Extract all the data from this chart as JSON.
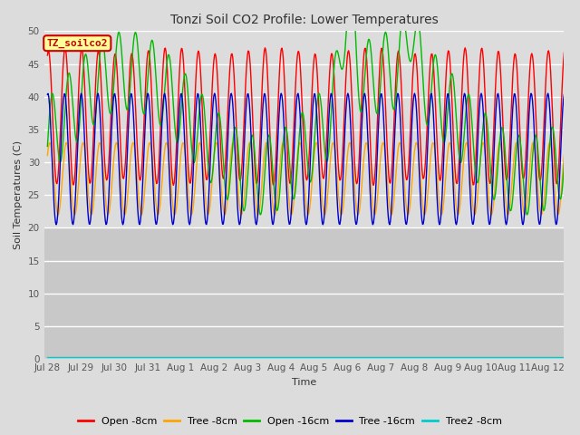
{
  "title": "Tonzi Soil CO2 Profile: Lower Temperatures",
  "xlabel": "Time",
  "ylabel": "Soil Temperatures (C)",
  "ylim": [
    0,
    50
  ],
  "yticks": [
    0,
    5,
    10,
    15,
    20,
    25,
    30,
    35,
    40,
    45,
    50
  ],
  "xlim_days": [
    -0.1,
    15.5
  ],
  "x_tick_labels": [
    "Jul 28",
    "Jul 29",
    "Jul 30",
    "Jul 31",
    "Aug 1",
    "Aug 2",
    "Aug 3",
    "Aug 4",
    "Aug 5",
    "Aug 6",
    "Aug 7",
    "Aug 8",
    "Aug 9",
    "Aug 10",
    "Aug 11",
    "Aug 12"
  ],
  "x_tick_positions": [
    0,
    1,
    2,
    3,
    4,
    5,
    6,
    7,
    8,
    9,
    10,
    11,
    12,
    13,
    14,
    15
  ],
  "legend_label": "TZ_soilco2",
  "series": [
    {
      "label": "Open -8cm",
      "color": "#ff0000"
    },
    {
      "label": "Tree -8cm",
      "color": "#ffa500"
    },
    {
      "label": "Open -16cm",
      "color": "#00bb00"
    },
    {
      "label": "Tree -16cm",
      "color": "#0000cc"
    },
    {
      "label": "Tree2 -8cm",
      "color": "#00cccc"
    }
  ],
  "bg_upper": "#dcdcdc",
  "bg_lower": "#c8c8c8",
  "grid_color": "#ffffff",
  "annotation_box_color": "#ffff99",
  "annotation_text_color": "#cc0000"
}
